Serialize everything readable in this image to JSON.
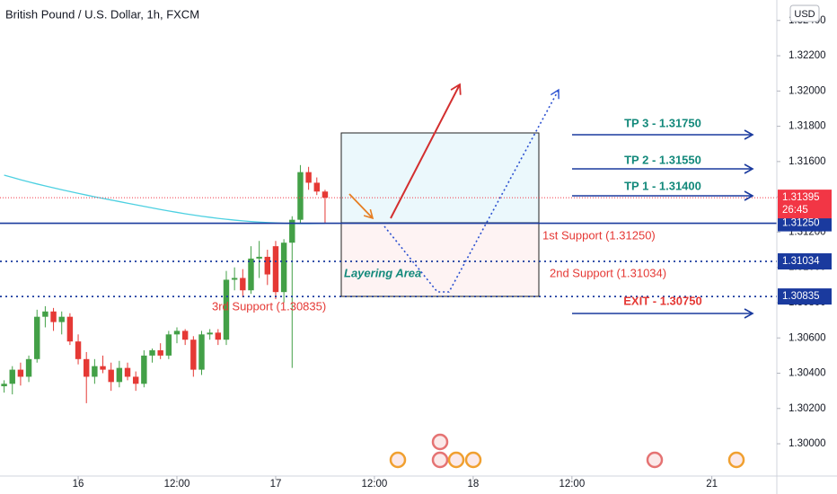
{
  "chart_data": {
    "type": "candlestick",
    "title": "British Pound / U.S. Dollar, 1h, FXCM",
    "currency": "USD",
    "x": [
      -9,
      -8,
      -7,
      -6,
      -5,
      -4,
      -3,
      -2,
      -1,
      0,
      1,
      2,
      3,
      4,
      5,
      6,
      7,
      8,
      9,
      10,
      11,
      12,
      13,
      14,
      15,
      16,
      17,
      18,
      19,
      20,
      21,
      22,
      23,
      24,
      25,
      26,
      27,
      28,
      29,
      30
    ],
    "open": [
      1.30326,
      1.3034,
      1.3042,
      1.3038,
      1.3048,
      1.3072,
      1.3075,
      1.3069,
      1.3072,
      1.3058,
      1.3048,
      1.3038,
      1.3044,
      1.3042,
      1.3035,
      1.3043,
      1.3038,
      1.3034,
      1.305,
      1.3053,
      1.305,
      1.3062,
      1.3064,
      1.3059,
      1.3042,
      1.3062,
      1.3063,
      1.3059,
      1.3093,
      1.3094,
      1.3087,
      1.3105,
      1.3106,
      1.3112,
      1.3086,
      1.3114,
      1.3127,
      1.3154,
      1.3148,
      1.3143
    ],
    "high": [
      1.3036,
      1.3044,
      1.3046,
      1.305,
      1.3076,
      1.3078,
      1.3077,
      1.3075,
      1.3074,
      1.3062,
      1.3052,
      1.3048,
      1.305,
      1.3046,
      1.3047,
      1.3046,
      1.3041,
      1.3053,
      1.3054,
      1.3057,
      1.3064,
      1.3066,
      1.3065,
      1.3061,
      1.3064,
      1.3065,
      1.3065,
      1.3098,
      1.31,
      1.3099,
      1.3112,
      1.3115,
      1.311,
      1.3115,
      1.3116,
      1.3129,
      1.3158,
      1.3157,
      1.3151,
      1.3144
    ],
    "low": [
      1.3029,
      1.3028,
      1.3033,
      1.3035,
      1.3046,
      1.3066,
      1.3064,
      1.3062,
      1.3056,
      1.3045,
      1.3023,
      1.3034,
      1.304,
      1.303,
      1.3032,
      1.3036,
      1.303,
      1.3032,
      1.3046,
      1.3048,
      1.3048,
      1.3057,
      1.3056,
      1.3038,
      1.3039,
      1.3059,
      1.3056,
      1.3056,
      1.3087,
      1.3083,
      1.3085,
      1.3094,
      1.309,
      1.3082,
      1.308,
      1.3043,
      1.3125,
      1.3144,
      1.3141,
      1.3125
    ],
    "close": [
      1.3034,
      1.3042,
      1.3038,
      1.3048,
      1.3072,
      1.3075,
      1.3069,
      1.3072,
      1.3058,
      1.3048,
      1.3038,
      1.3044,
      1.3042,
      1.3035,
      1.3043,
      1.3038,
      1.3034,
      1.305,
      1.3053,
      1.305,
      1.3062,
      1.3064,
      1.3059,
      1.3042,
      1.3062,
      1.3063,
      1.3059,
      1.3093,
      1.3094,
      1.3087,
      1.3105,
      1.3106,
      1.3096,
      1.3086,
      1.3114,
      1.3127,
      1.3154,
      1.3148,
      1.3143,
      1.31395
    ],
    "up_color": "#43a047",
    "down_color": "#e53935",
    "ma": {
      "color": "#4dd0e1",
      "values": [
        1.31523,
        1.3151,
        1.31497,
        1.31485,
        1.31473,
        1.31462,
        1.31451,
        1.3144,
        1.3143,
        1.3142,
        1.3141,
        1.314,
        1.31391,
        1.31382,
        1.31373,
        1.31364,
        1.31355,
        1.31346,
        1.31337,
        1.31328,
        1.3132,
        1.31312,
        1.31304,
        1.31297,
        1.3129,
        1.31284,
        1.31278,
        1.31273,
        1.31268,
        1.31264,
        1.3126,
        1.31257,
        1.31254,
        1.31252,
        1.3125,
        1.31249,
        1.31248,
        1.31248,
        1.31249,
        1.3125
      ]
    },
    "xlim": [
      -9.5,
      84.9
    ],
    "xticks": [
      {
        "value": 0,
        "label": "16"
      },
      {
        "value": 12,
        "label": "12:00"
      },
      {
        "value": 24,
        "label": "17"
      },
      {
        "value": 36,
        "label": "12:00"
      },
      {
        "value": 48,
        "label": "18"
      },
      {
        "value": 60,
        "label": "12:00"
      },
      {
        "value": 77,
        "label": "21"
      }
    ],
    "ylim": [
      1.29817,
      1.32516
    ],
    "yticks": [
      {
        "value": 1.3,
        "label": "1.30000"
      },
      {
        "value": 1.302,
        "label": "1.30200"
      },
      {
        "value": 1.304,
        "label": "1.30400"
      },
      {
        "value": 1.306,
        "label": "1.30600"
      },
      {
        "value": 1.308,
        "label": "1.30800"
      },
      {
        "value": 1.31,
        "label": "1.31000"
      },
      {
        "value": 1.312,
        "label": "1.31200"
      },
      {
        "value": 1.314,
        "label": "1.31400"
      },
      {
        "value": 1.316,
        "label": "1.31600"
      },
      {
        "value": 1.318,
        "label": "1.31800"
      },
      {
        "value": 1.32,
        "label": "1.32000"
      },
      {
        "value": 1.322,
        "label": "1.32200"
      },
      {
        "value": 1.324,
        "label": "1.32400"
      }
    ],
    "grid": false,
    "last_price": {
      "value": 1.31395,
      "label": "1.31395",
      "countdown": "26:45",
      "color": "#f23645"
    },
    "levels": [
      {
        "value": 1.3125,
        "label": "1.31250",
        "style": "solid"
      },
      {
        "value": 1.31034,
        "label": "1.31034",
        "style": "dotted"
      },
      {
        "value": 1.30835,
        "label": "1.30835",
        "style": "dotted"
      }
    ],
    "level_color": "#1a3a9e",
    "annotations": {
      "tp3": "TP 3 - 1.31750",
      "tp2": "TP 2 - 1.31550",
      "tp1": "TP 1 - 1.31400",
      "support1": "1st Support (1.31250)",
      "support2": "2nd Support (1.31034)",
      "support3": "3rd Support (1.30835)",
      "layering": "Layering Area",
      "exit": "EXIT - 1.30750"
    }
  }
}
